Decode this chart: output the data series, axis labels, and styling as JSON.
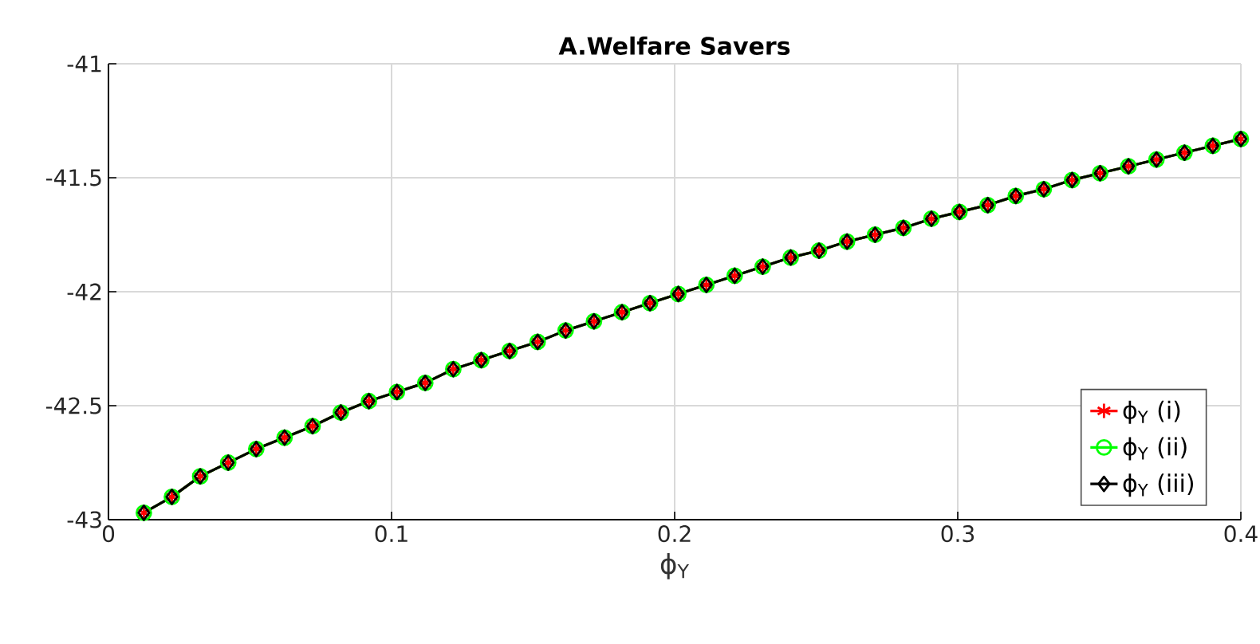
{
  "chart_data": {
    "type": "line",
    "title": "A.Welfare Savers",
    "xlabel": "ϕ$_{Y}$",
    "x": [
      0.0125,
      0.0224,
      0.0324,
      0.0423,
      0.0522,
      0.0622,
      0.0721,
      0.0821,
      0.092,
      0.1019,
      0.1119,
      0.1218,
      0.1317,
      0.1417,
      0.1516,
      0.1615,
      0.1715,
      0.1814,
      0.1913,
      0.2013,
      0.2112,
      0.2212,
      0.2311,
      0.241,
      0.251,
      0.2609,
      0.2708,
      0.2808,
      0.2907,
      0.3006,
      0.3106,
      0.3205,
      0.3304,
      0.3404,
      0.3503,
      0.3603,
      0.3702,
      0.3801,
      0.3901,
      0.4
    ],
    "series": [
      {
        "name": "ϕ$_{Y}$ (i)",
        "color": "#ff0000",
        "marker": "cross",
        "values": [
          -42.97,
          -42.9,
          -42.81,
          -42.75,
          -42.69,
          -42.64,
          -42.59,
          -42.53,
          -42.48,
          -42.44,
          -42.4,
          -42.34,
          -42.3,
          -42.26,
          -42.22,
          -42.17,
          -42.13,
          -42.09,
          -42.05,
          -42.01,
          -41.97,
          -41.93,
          -41.89,
          -41.85,
          -41.82,
          -41.78,
          -41.75,
          -41.72,
          -41.68,
          -41.65,
          -41.62,
          -41.58,
          -41.55,
          -41.51,
          -41.48,
          -41.45,
          -41.42,
          -41.39,
          -41.36,
          -41.33
        ]
      },
      {
        "name": "ϕ$_{Y}$ (ii)",
        "color": "#00ff00",
        "marker": "circle",
        "values": [
          -42.97,
          -42.9,
          -42.81,
          -42.75,
          -42.69,
          -42.64,
          -42.59,
          -42.53,
          -42.48,
          -42.44,
          -42.4,
          -42.34,
          -42.3,
          -42.26,
          -42.22,
          -42.17,
          -42.13,
          -42.09,
          -42.05,
          -42.01,
          -41.97,
          -41.93,
          -41.89,
          -41.85,
          -41.82,
          -41.78,
          -41.75,
          -41.72,
          -41.68,
          -41.65,
          -41.62,
          -41.58,
          -41.55,
          -41.51,
          -41.48,
          -41.45,
          -41.42,
          -41.39,
          -41.36,
          -41.33
        ]
      },
      {
        "name": "ϕ$_{Y}$ (iii)",
        "color": "#000000",
        "marker": "diamond",
        "values": [
          -42.97,
          -42.9,
          -42.81,
          -42.75,
          -42.69,
          -42.64,
          -42.59,
          -42.53,
          -42.48,
          -42.44,
          -42.4,
          -42.34,
          -42.3,
          -42.26,
          -42.22,
          -42.17,
          -42.13,
          -42.09,
          -42.05,
          -42.01,
          -41.97,
          -41.93,
          -41.89,
          -41.85,
          -41.82,
          -41.78,
          -41.75,
          -41.72,
          -41.68,
          -41.65,
          -41.62,
          -41.58,
          -41.55,
          -41.51,
          -41.48,
          -41.45,
          -41.42,
          -41.39,
          -41.36,
          -41.33
        ]
      }
    ],
    "xlim": [
      0,
      0.4
    ],
    "ylim": [
      -43,
      -41
    ],
    "xticks": [
      0,
      0.1,
      0.2,
      0.3,
      0.4
    ],
    "yticks": [
      -43,
      -42.5,
      -42,
      -41.5,
      -41
    ],
    "grid": true,
    "legend": "bottom right"
  }
}
